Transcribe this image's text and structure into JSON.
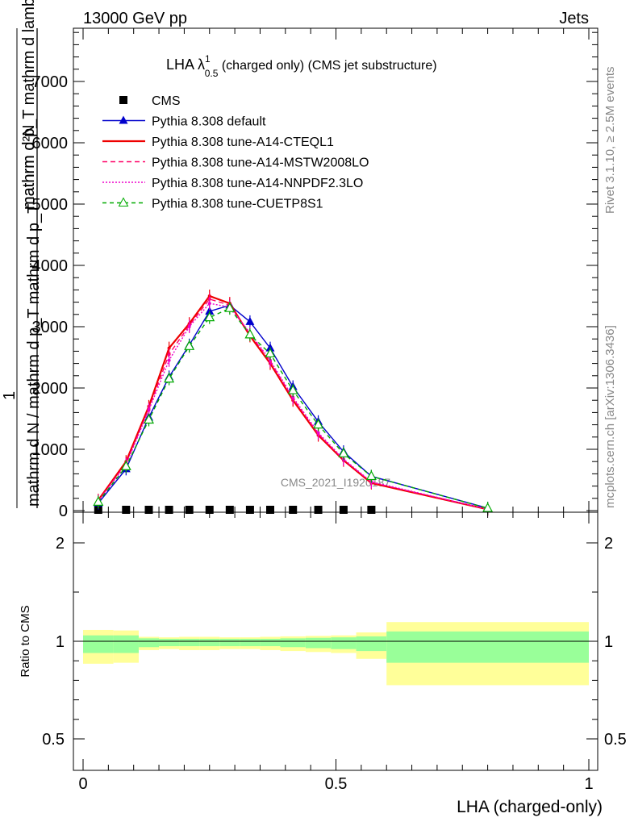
{
  "header": {
    "left": "13000 GeV pp",
    "right": "Jets"
  },
  "side_labels": {
    "rivet": "Rivet 3.1.10, ≥ 2.5M events",
    "mcplots": "mcplots.cern.ch [arXiv:1306.3436]"
  },
  "chart_data": [
    {
      "type": "line",
      "title": "LHA λ^1_0.5 (charged only) (CMS jet substructure)",
      "title_main": "LHA λ",
      "title_sup": "1",
      "title_sub": "0.5",
      "title_rest": " (charged only) (CMS jet substructure)",
      "ylabel_numerator": "mathrm d²N",
      "ylabel_denominator": "mathrm d N / mathrm d p_T mathrm d p_T mathrm d lambda",
      "ylabel_prefix": "1",
      "ylabel_top": "mathrm d²N",
      "ylabel_top2": "mathrm d p_T mathrm d lambda",
      "ylabel_bottom": "mathrm d N / mathrm d p_T mathrm d p_T",
      "ylim": [
        0,
        8000
      ],
      "xlim": [
        -0.02,
        1.0
      ],
      "yticks": [
        0,
        1000,
        2000,
        3000,
        4000,
        5000,
        6000,
        7000
      ],
      "ytick_labels": [
        "0",
        "1000",
        "2000",
        "3000",
        "4000",
        "5000",
        "6000",
        "7000"
      ],
      "watermark": "CMS_2021_I1920187",
      "legend_position": "top-left",
      "bins": [
        0.0,
        0.06,
        0.11,
        0.15,
        0.19,
        0.23,
        0.27,
        0.31,
        0.35,
        0.39,
        0.44,
        0.49,
        0.54,
        0.6,
        1.0
      ],
      "x": [
        0.03,
        0.085,
        0.13,
        0.17,
        0.21,
        0.25,
        0.29,
        0.33,
        0.37,
        0.415,
        0.465,
        0.515,
        0.57,
        0.8
      ],
      "series": [
        {
          "name": "CMS",
          "style": "marker",
          "color": "#000000",
          "values": [
            0,
            0,
            0,
            0,
            0,
            0,
            0,
            0,
            0,
            0,
            0,
            0,
            0,
            null
          ]
        },
        {
          "name": "Pythia 8.308 default",
          "style": "solid",
          "marker": "triangle",
          "color": "#0000cc",
          "values": [
            120,
            680,
            1520,
            2180,
            2700,
            3250,
            3350,
            3080,
            2650,
            2020,
            1450,
            960,
            560,
            40
          ]
        },
        {
          "name": "Pythia 8.308 tune-A14-CTEQL1",
          "style": "solid",
          "color": "#ee0000",
          "values": [
            170,
            800,
            1700,
            2650,
            3050,
            3500,
            3380,
            2850,
            2400,
            1800,
            1230,
            820,
            450,
            20
          ]
        },
        {
          "name": "Pythia 8.308 tune-A14-MSTW2008LO",
          "style": "dashed",
          "color": "#ff0066",
          "values": [
            160,
            770,
            1660,
            2550,
            3020,
            3450,
            3350,
            2880,
            2430,
            1830,
            1250,
            830,
            460,
            22
          ]
        },
        {
          "name": "Pythia 8.308 tune-A14-NNPDF2.3LO",
          "style": "dotted",
          "color": "#ee00cc",
          "values": [
            150,
            750,
            1640,
            2450,
            3000,
            3380,
            3320,
            2900,
            2450,
            1850,
            1270,
            840,
            470,
            23
          ]
        },
        {
          "name": "Pythia 8.308 tune-CUETP8S1",
          "style": "dashed",
          "marker": "open-triangle",
          "color": "#00aa00",
          "values": [
            140,
            720,
            1480,
            2150,
            2680,
            3150,
            3300,
            2870,
            2560,
            1960,
            1400,
            930,
            560,
            38
          ]
        }
      ]
    },
    {
      "type": "area",
      "ylabel": "Ratio to CMS",
      "xlabel": "LHA (charged-only)",
      "ylim": [
        0.35,
        2.25
      ],
      "yticks": [
        0.5,
        1,
        2
      ],
      "ytick_labels": [
        "0.5",
        "1",
        "2"
      ],
      "xticks": [
        0,
        0.5,
        1
      ],
      "xtick_labels": [
        "0",
        "0.5",
        "1"
      ],
      "bins": [
        0.0,
        0.06,
        0.11,
        0.15,
        0.19,
        0.23,
        0.27,
        0.31,
        0.35,
        0.39,
        0.44,
        0.49,
        0.54,
        0.6,
        1.0
      ],
      "stat_band": [
        [
          0.94,
          1.06
        ],
        [
          0.94,
          1.06
        ],
        [
          0.97,
          1.03
        ],
        [
          0.975,
          1.025
        ],
        [
          0.975,
          1.025
        ],
        [
          0.975,
          1.025
        ],
        [
          0.975,
          1.025
        ],
        [
          0.975,
          1.025
        ],
        [
          0.975,
          1.025
        ],
        [
          0.97,
          1.03
        ],
        [
          0.965,
          1.035
        ],
        [
          0.96,
          1.04
        ],
        [
          0.95,
          1.05
        ],
        [
          0.89,
          1.1
        ]
      ],
      "total_band": [
        [
          0.885,
          1.115
        ],
        [
          0.89,
          1.11
        ],
        [
          0.955,
          1.045
        ],
        [
          0.96,
          1.04
        ],
        [
          0.955,
          1.045
        ],
        [
          0.955,
          1.045
        ],
        [
          0.96,
          1.04
        ],
        [
          0.96,
          1.04
        ],
        [
          0.955,
          1.045
        ],
        [
          0.95,
          1.05
        ],
        [
          0.945,
          1.055
        ],
        [
          0.94,
          1.06
        ],
        [
          0.91,
          1.09
        ],
        [
          0.775,
          1.195
        ]
      ],
      "band_colors": {
        "stat": "#99ff99",
        "total": "#ffff99"
      }
    }
  ]
}
